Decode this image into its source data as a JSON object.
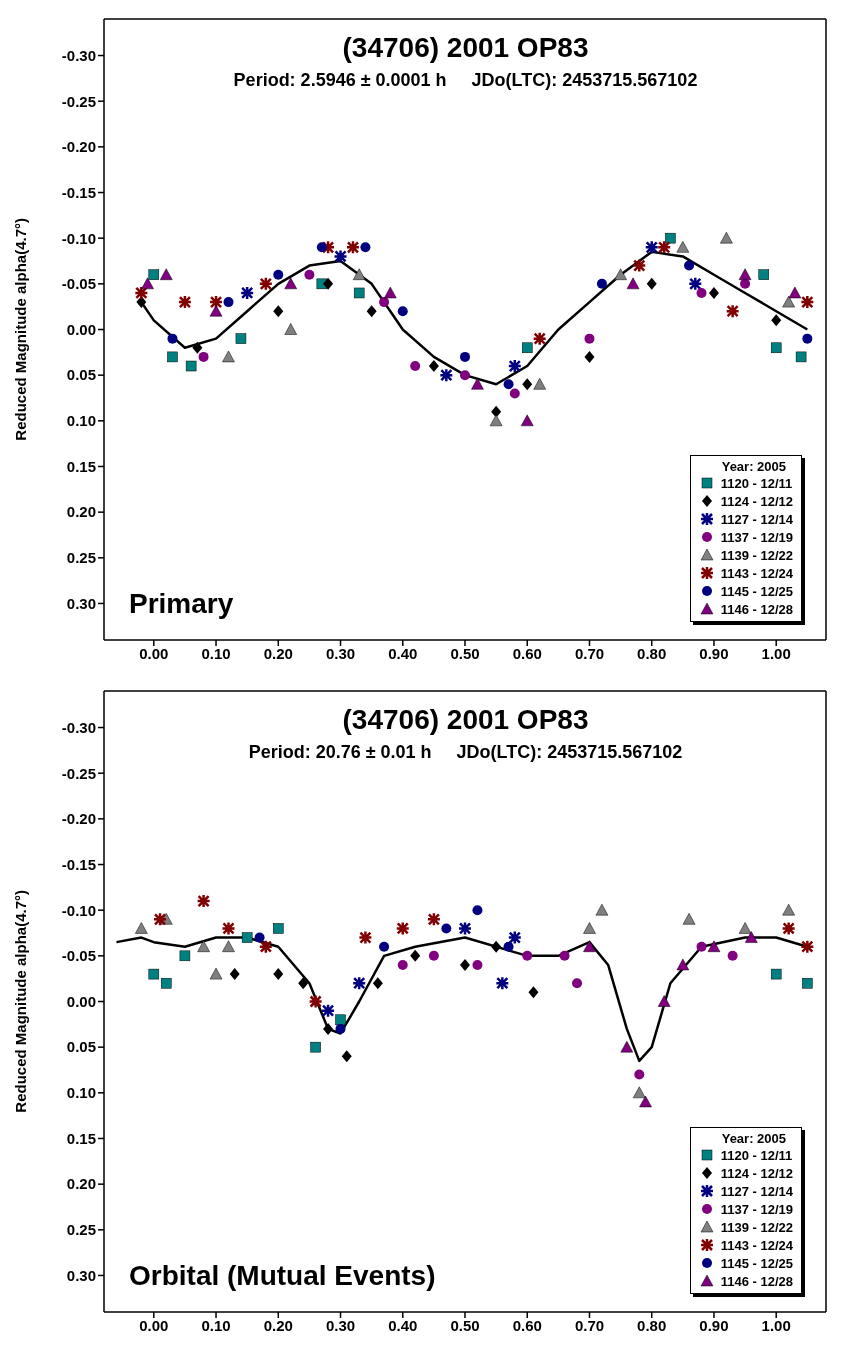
{
  "chart_data": [
    {
      "type": "scatter",
      "title": "(34706) 2001 OP83",
      "subtitle": "Period: 2.5946 ± 0.0001 h     JDo(LTC): 2453715.567102",
      "ylabel": "Reduced Magnitude alpha(4.7°)",
      "legend_title": "Year: 2005",
      "legend": "bottom right",
      "annotations": [
        "Primary"
      ],
      "xlim": [
        -0.08,
        1.08
      ],
      "xticks": [
        {
          "value": 0,
          "label": "0.00"
        },
        {
          "value": 0.1,
          "label": "0.10"
        },
        {
          "value": 0.2,
          "label": "0.20"
        },
        {
          "value": 0.3,
          "label": "0.30"
        },
        {
          "value": 0.4,
          "label": "0.40"
        },
        {
          "value": 0.5,
          "label": "0.50"
        },
        {
          "value": 0.6,
          "label": "0.60"
        },
        {
          "value": 0.7,
          "label": "0.70"
        },
        {
          "value": 0.8,
          "label": "0.80"
        },
        {
          "value": 0.9,
          "label": "0.90"
        },
        {
          "value": 1,
          "label": "1.00"
        }
      ],
      "ylim": [
        0.34,
        -0.34
      ],
      "yticks": [
        {
          "value": -0.3,
          "label": "-0.30"
        },
        {
          "value": -0.25,
          "label": "-0.25"
        },
        {
          "value": -0.2,
          "label": "-0.20"
        },
        {
          "value": -0.15,
          "label": "-0.15"
        },
        {
          "value": -0.1,
          "label": "-0.10"
        },
        {
          "value": -0.05,
          "label": "-0.05"
        },
        {
          "value": 0,
          "label": "0.00"
        },
        {
          "value": 0.05,
          "label": "0.05"
        },
        {
          "value": 0.1,
          "label": "0.10"
        },
        {
          "value": 0.15,
          "label": "0.15"
        },
        {
          "value": 0.2,
          "label": "0.20"
        },
        {
          "value": 0.25,
          "label": "0.25"
        },
        {
          "value": 0.3,
          "label": "0.30"
        }
      ],
      "series": [
        {
          "type": "line",
          "color": "#000000",
          "marker": "none",
          "x": [
            -0.02,
            0.0,
            0.05,
            0.1,
            0.15,
            0.2,
            0.25,
            0.3,
            0.35,
            0.4,
            0.45,
            0.5,
            0.55,
            0.6,
            0.65,
            0.7,
            0.75,
            0.8,
            0.85,
            0.9,
            0.95,
            1.0,
            1.05
          ],
          "values": [
            -0.03,
            -0.01,
            0.02,
            0.01,
            -0.02,
            -0.05,
            -0.07,
            -0.075,
            -0.05,
            0.0,
            0.03,
            0.05,
            0.06,
            0.04,
            0.0,
            -0.03,
            -0.06,
            -0.085,
            -0.08,
            -0.06,
            -0.04,
            -0.02,
            0.0
          ]
        },
        {
          "name": "1120 - 12/11",
          "color": "#008080",
          "marker": "square",
          "x": [
            0.0,
            0.03,
            0.06,
            0.14,
            0.27,
            0.33,
            0.6,
            0.83,
            0.98,
            1.0,
            1.04
          ],
          "values": [
            -0.06,
            0.03,
            0.04,
            0.01,
            -0.05,
            -0.04,
            0.02,
            -0.1,
            -0.06,
            0.02,
            0.03
          ]
        },
        {
          "name": "1124 - 12/12",
          "color": "#000000",
          "marker": "diamond",
          "x": [
            -0.02,
            0.07,
            0.2,
            0.28,
            0.35,
            0.45,
            0.55,
            0.6,
            0.7,
            0.8,
            0.9,
            1.0
          ],
          "values": [
            -0.03,
            0.02,
            -0.02,
            -0.05,
            -0.02,
            0.04,
            0.09,
            0.06,
            0.03,
            -0.05,
            -0.04,
            -0.01
          ]
        },
        {
          "name": "1127 - 12/14",
          "color": "#000080",
          "marker": "cross",
          "x": [
            0.15,
            0.3,
            0.47,
            0.58,
            0.8,
            0.87
          ],
          "values": [
            -0.04,
            -0.08,
            0.05,
            0.04,
            -0.09,
            -0.05
          ]
        },
        {
          "name": "1137 - 12/19",
          "color": "#800080",
          "marker": "circle",
          "x": [
            0.08,
            0.25,
            0.37,
            0.42,
            0.5,
            0.58,
            0.7,
            0.88,
            0.95
          ],
          "values": [
            0.03,
            -0.06,
            -0.03,
            0.04,
            0.05,
            0.07,
            0.01,
            -0.04,
            -0.05
          ]
        },
        {
          "name": "1139 - 12/22",
          "color": "#808080",
          "marker": "triangle",
          "x": [
            0.12,
            0.22,
            0.33,
            0.55,
            0.62,
            0.75,
            0.85,
            0.92,
            1.02
          ],
          "values": [
            0.03,
            0.0,
            -0.06,
            0.1,
            0.06,
            -0.06,
            -0.09,
            -0.1,
            -0.03
          ]
        },
        {
          "name": "1143 - 12/24",
          "color": "#800000",
          "marker": "cross",
          "x": [
            -0.02,
            0.05,
            0.1,
            0.18,
            0.28,
            0.32,
            0.62,
            0.78,
            0.82,
            0.93,
            1.05
          ],
          "values": [
            -0.04,
            -0.03,
            -0.03,
            -0.05,
            -0.09,
            -0.09,
            0.01,
            -0.07,
            -0.09,
            -0.02,
            -0.03
          ]
        },
        {
          "name": "1145 - 12/25",
          "color": "#000080",
          "marker": "circle",
          "x": [
            0.03,
            0.12,
            0.2,
            0.27,
            0.34,
            0.4,
            0.5,
            0.57,
            0.72,
            0.86,
            1.05
          ],
          "values": [
            0.01,
            -0.03,
            -0.06,
            -0.09,
            -0.09,
            -0.02,
            0.03,
            0.06,
            -0.05,
            -0.07,
            0.01
          ]
        },
        {
          "name": "1146 - 12/28",
          "color": "#800080",
          "marker": "triangle",
          "x": [
            -0.01,
            0.02,
            0.1,
            0.22,
            0.38,
            0.52,
            0.6,
            0.77,
            0.95,
            1.03
          ],
          "values": [
            -0.05,
            -0.06,
            -0.02,
            -0.05,
            -0.04,
            0.06,
            0.1,
            -0.05,
            -0.06,
            -0.04
          ]
        }
      ]
    },
    {
      "type": "scatter",
      "title": "(34706) 2001 OP83",
      "subtitle": "Period: 20.76 ± 0.01 h     JDo(LTC): 2453715.567102",
      "ylabel": "Reduced Magnitude alpha(4.7°)",
      "legend_title": "Year: 2005",
      "legend": "bottom right",
      "annotations": [
        "Orbital (Mutual Events)"
      ],
      "xlim": [
        -0.08,
        1.08
      ],
      "xticks": [
        {
          "value": 0,
          "label": "0.00"
        },
        {
          "value": 0.1,
          "label": "0.10"
        },
        {
          "value": 0.2,
          "label": "0.20"
        },
        {
          "value": 0.3,
          "label": "0.30"
        },
        {
          "value": 0.4,
          "label": "0.40"
        },
        {
          "value": 0.5,
          "label": "0.50"
        },
        {
          "value": 0.6,
          "label": "0.60"
        },
        {
          "value": 0.7,
          "label": "0.70"
        },
        {
          "value": 0.8,
          "label": "0.80"
        },
        {
          "value": 0.9,
          "label": "0.90"
        },
        {
          "value": 1,
          "label": "1.00"
        }
      ],
      "ylim": [
        0.34,
        -0.34
      ],
      "yticks": [
        {
          "value": -0.3,
          "label": "-0.30"
        },
        {
          "value": -0.25,
          "label": "-0.25"
        },
        {
          "value": -0.2,
          "label": "-0.20"
        },
        {
          "value": -0.15,
          "label": "-0.15"
        },
        {
          "value": -0.1,
          "label": "-0.10"
        },
        {
          "value": -0.05,
          "label": "-0.05"
        },
        {
          "value": 0,
          "label": "0.00"
        },
        {
          "value": 0.05,
          "label": "0.05"
        },
        {
          "value": 0.1,
          "label": "0.10"
        },
        {
          "value": 0.15,
          "label": "0.15"
        },
        {
          "value": 0.2,
          "label": "0.20"
        },
        {
          "value": 0.25,
          "label": "0.25"
        },
        {
          "value": 0.3,
          "label": "0.30"
        }
      ],
      "series": [
        {
          "type": "line",
          "color": "#000000",
          "marker": "none",
          "x": [
            -0.06,
            -0.02,
            0.0,
            0.05,
            0.1,
            0.15,
            0.2,
            0.25,
            0.28,
            0.3,
            0.33,
            0.37,
            0.42,
            0.5,
            0.6,
            0.65,
            0.7,
            0.73,
            0.76,
            0.78,
            0.8,
            0.83,
            0.88,
            0.95,
            1.0,
            1.05
          ],
          "values": [
            -0.065,
            -0.07,
            -0.065,
            -0.06,
            -0.07,
            -0.07,
            -0.06,
            -0.02,
            0.03,
            0.035,
            0.0,
            -0.05,
            -0.06,
            -0.07,
            -0.05,
            -0.05,
            -0.065,
            -0.04,
            0.03,
            0.065,
            0.05,
            -0.02,
            -0.06,
            -0.07,
            -0.07,
            -0.06
          ]
        },
        {
          "name": "1120 - 12/11",
          "color": "#008080",
          "marker": "square",
          "x": [
            0.0,
            0.02,
            0.05,
            0.15,
            0.2,
            0.26,
            0.3,
            1.0,
            1.05
          ],
          "values": [
            -0.03,
            -0.02,
            -0.05,
            -0.07,
            -0.08,
            0.05,
            0.02,
            -0.03,
            -0.02
          ]
        },
        {
          "name": "1124 - 12/12",
          "color": "#000000",
          "marker": "diamond",
          "x": [
            0.13,
            0.2,
            0.24,
            0.28,
            0.31,
            0.36,
            0.42,
            0.5,
            0.55,
            0.61
          ],
          "values": [
            -0.03,
            -0.03,
            -0.02,
            0.03,
            0.06,
            -0.02,
            -0.05,
            -0.04,
            -0.06,
            -0.01
          ]
        },
        {
          "name": "1127 - 12/14",
          "color": "#000080",
          "marker": "cross",
          "x": [
            0.28,
            0.33,
            0.5,
            0.56,
            0.58
          ],
          "values": [
            0.01,
            -0.02,
            -0.08,
            -0.02,
            -0.07
          ]
        },
        {
          "name": "1137 - 12/19",
          "color": "#800080",
          "marker": "circle",
          "x": [
            0.4,
            0.45,
            0.52,
            0.6,
            0.66,
            0.68,
            0.78,
            0.88,
            0.93
          ],
          "values": [
            -0.04,
            -0.05,
            -0.04,
            -0.05,
            -0.05,
            -0.02,
            0.08,
            -0.06,
            -0.05
          ]
        },
        {
          "name": "1139 - 12/22",
          "color": "#808080",
          "marker": "triangle",
          "x": [
            -0.02,
            0.02,
            0.08,
            0.1,
            0.12,
            0.7,
            0.72,
            0.78,
            0.86,
            0.95,
            1.02
          ],
          "values": [
            -0.08,
            -0.09,
            -0.06,
            -0.03,
            -0.06,
            -0.08,
            -0.1,
            0.1,
            -0.09,
            -0.08,
            -0.1
          ]
        },
        {
          "name": "1143 - 12/24",
          "color": "#800000",
          "marker": "cross",
          "x": [
            0.01,
            0.08,
            0.12,
            0.18,
            0.26,
            0.34,
            0.4,
            0.45,
            1.02,
            1.05
          ],
          "values": [
            -0.09,
            -0.11,
            -0.08,
            -0.06,
            0.0,
            -0.07,
            -0.08,
            -0.09,
            -0.08,
            -0.06
          ]
        },
        {
          "name": "1145 - 12/25",
          "color": "#000080",
          "marker": "circle",
          "x": [
            0.17,
            0.3,
            0.37,
            0.47,
            0.52,
            0.57
          ],
          "values": [
            -0.07,
            0.03,
            -0.06,
            -0.08,
            -0.1,
            -0.06
          ]
        },
        {
          "name": "1146 - 12/28",
          "color": "#800080",
          "marker": "triangle",
          "x": [
            0.7,
            0.76,
            0.79,
            0.82,
            0.85,
            0.9,
            0.96
          ],
          "values": [
            -0.06,
            0.05,
            0.11,
            0.0,
            -0.04,
            -0.06,
            -0.07
          ]
        }
      ]
    }
  ]
}
